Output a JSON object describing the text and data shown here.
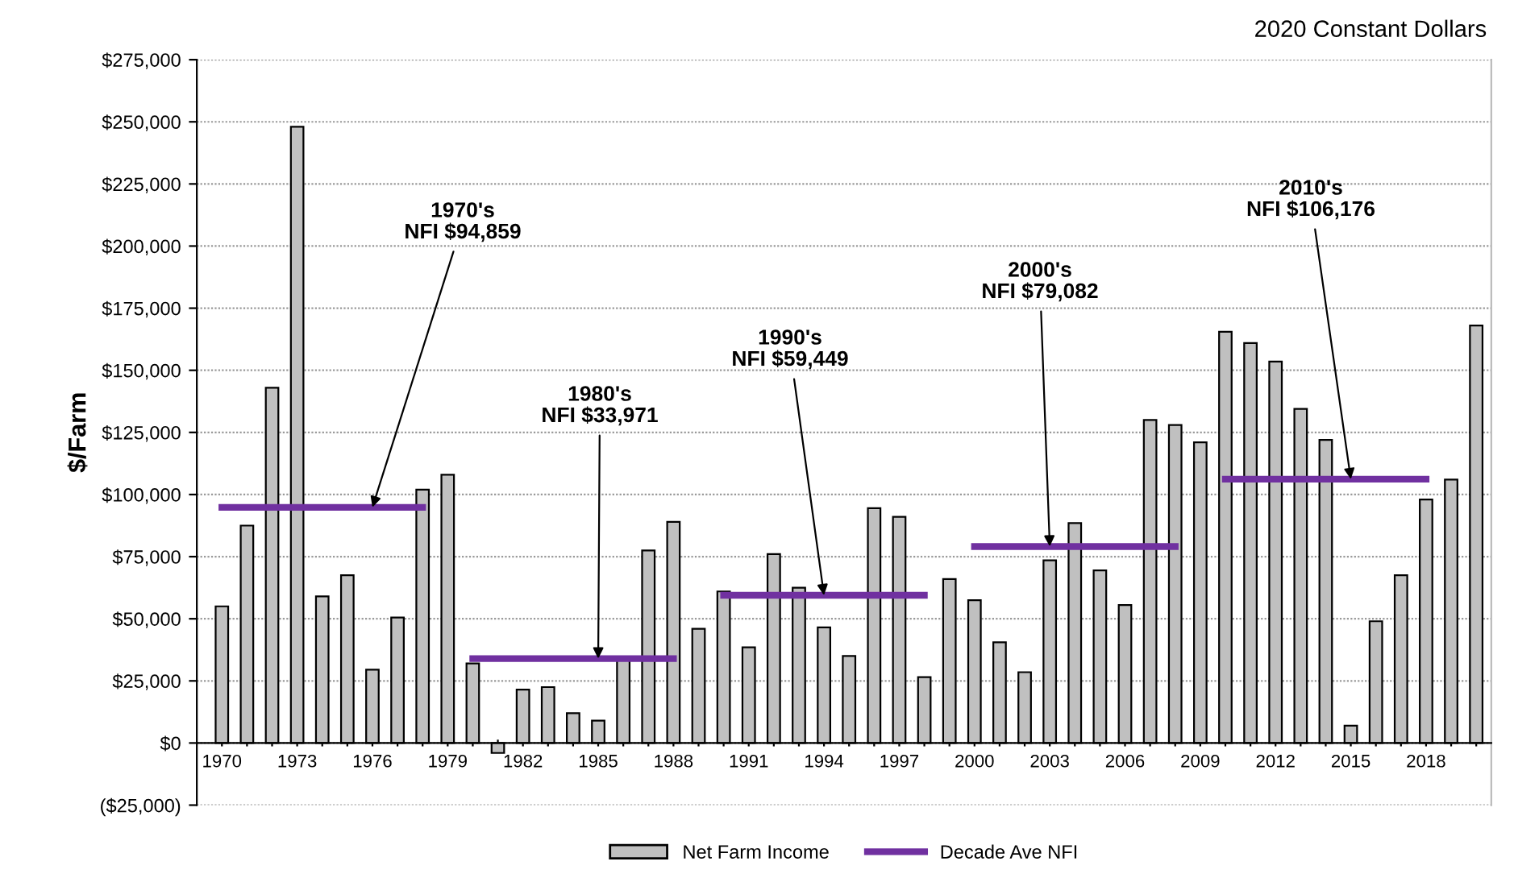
{
  "chart_data": {
    "type": "bar",
    "annotations": [
      "2020 Constant Dollars",
      {
        "text": "1970's\nNFI $94,859",
        "x": "1976",
        "y": 94859
      },
      {
        "text": "1980's\nNFI $33,971",
        "x": "1985",
        "y": 33971
      },
      {
        "text": "1990's\nNFI $59,449",
        "x": "1994",
        "y": 59449
      },
      {
        "text": "2000's\nNFI $79,082",
        "x": "2003",
        "y": 79082
      },
      {
        "text": "2010's\nNFI $106,176",
        "x": "2015",
        "y": 106176
      }
    ],
    "ylabel": "$/Farm",
    "categories": [
      "1970",
      null,
      null,
      "1973",
      null,
      null,
      "1976",
      null,
      null,
      "1979",
      null,
      null,
      "1982",
      null,
      null,
      "1985",
      null,
      null,
      "1988",
      null,
      null,
      "1991",
      null,
      null,
      "1994",
      null,
      null,
      "1997",
      null,
      null,
      "2000",
      null,
      null,
      "2003",
      null,
      null,
      "2006",
      null,
      null,
      "2009",
      null,
      null,
      "2012",
      null,
      null,
      "2015",
      null,
      null,
      "2018",
      null,
      null
    ],
    "series": [
      {
        "name": "Net Farm Income",
        "color": "#c0c0c0",
        "values": [
          55000,
          87500,
          143000,
          248000,
          59000,
          67500,
          29500,
          50500,
          102000,
          108000,
          32000,
          -4000,
          21500,
          22500,
          12000,
          9000,
          33500,
          77500,
          89000,
          46000,
          61000,
          38500,
          76000,
          62500,
          46500,
          35000,
          94500,
          91000,
          26500,
          66000,
          57500,
          40500,
          28500,
          73500,
          88500,
          69500,
          55500,
          130000,
          128000,
          121000,
          165500,
          161000,
          153500,
          134500,
          122000,
          7000,
          49000,
          67500,
          98000,
          106000,
          168000
        ]
      },
      {
        "name": "Decade Ave NFI",
        "type": "line",
        "color": "#7030a0",
        "values": [
          94859,
          94859,
          94859,
          94859,
          94859,
          94859,
          94859,
          94859,
          94859,
          null,
          33971,
          33971,
          33971,
          33971,
          33971,
          33971,
          33971,
          33971,
          33971,
          null,
          59449,
          59449,
          59449,
          59449,
          59449,
          59449,
          59449,
          59449,
          59449,
          null,
          79082,
          79082,
          79082,
          79082,
          79082,
          79082,
          79082,
          79082,
          79082,
          null,
          106176,
          106176,
          106176,
          106176,
          106176,
          106176,
          106176,
          106176,
          106176,
          null,
          null
        ]
      }
    ],
    "ylim": [
      -25000,
      275000
    ],
    "yticks": [
      {
        "value": -25000,
        "label": "($25,000)"
      },
      {
        "value": 0,
        "label": "$0"
      },
      {
        "value": 25000,
        "label": "$25,000"
      },
      {
        "value": 50000,
        "label": "$50,000"
      },
      {
        "value": 75000,
        "label": "$75,000"
      },
      {
        "value": 100000,
        "label": "$100,000"
      },
      {
        "value": 125000,
        "label": "$125,000"
      },
      {
        "value": 150000,
        "label": "$150,000"
      },
      {
        "value": 175000,
        "label": "$175,000"
      },
      {
        "value": 200000,
        "label": "$200,000"
      },
      {
        "value": 225000,
        "label": "$225,000"
      },
      {
        "value": 250000,
        "label": "$250,000"
      },
      {
        "value": 275000,
        "label": "$275,000"
      }
    ],
    "grid": "y",
    "legend": "bottom"
  }
}
